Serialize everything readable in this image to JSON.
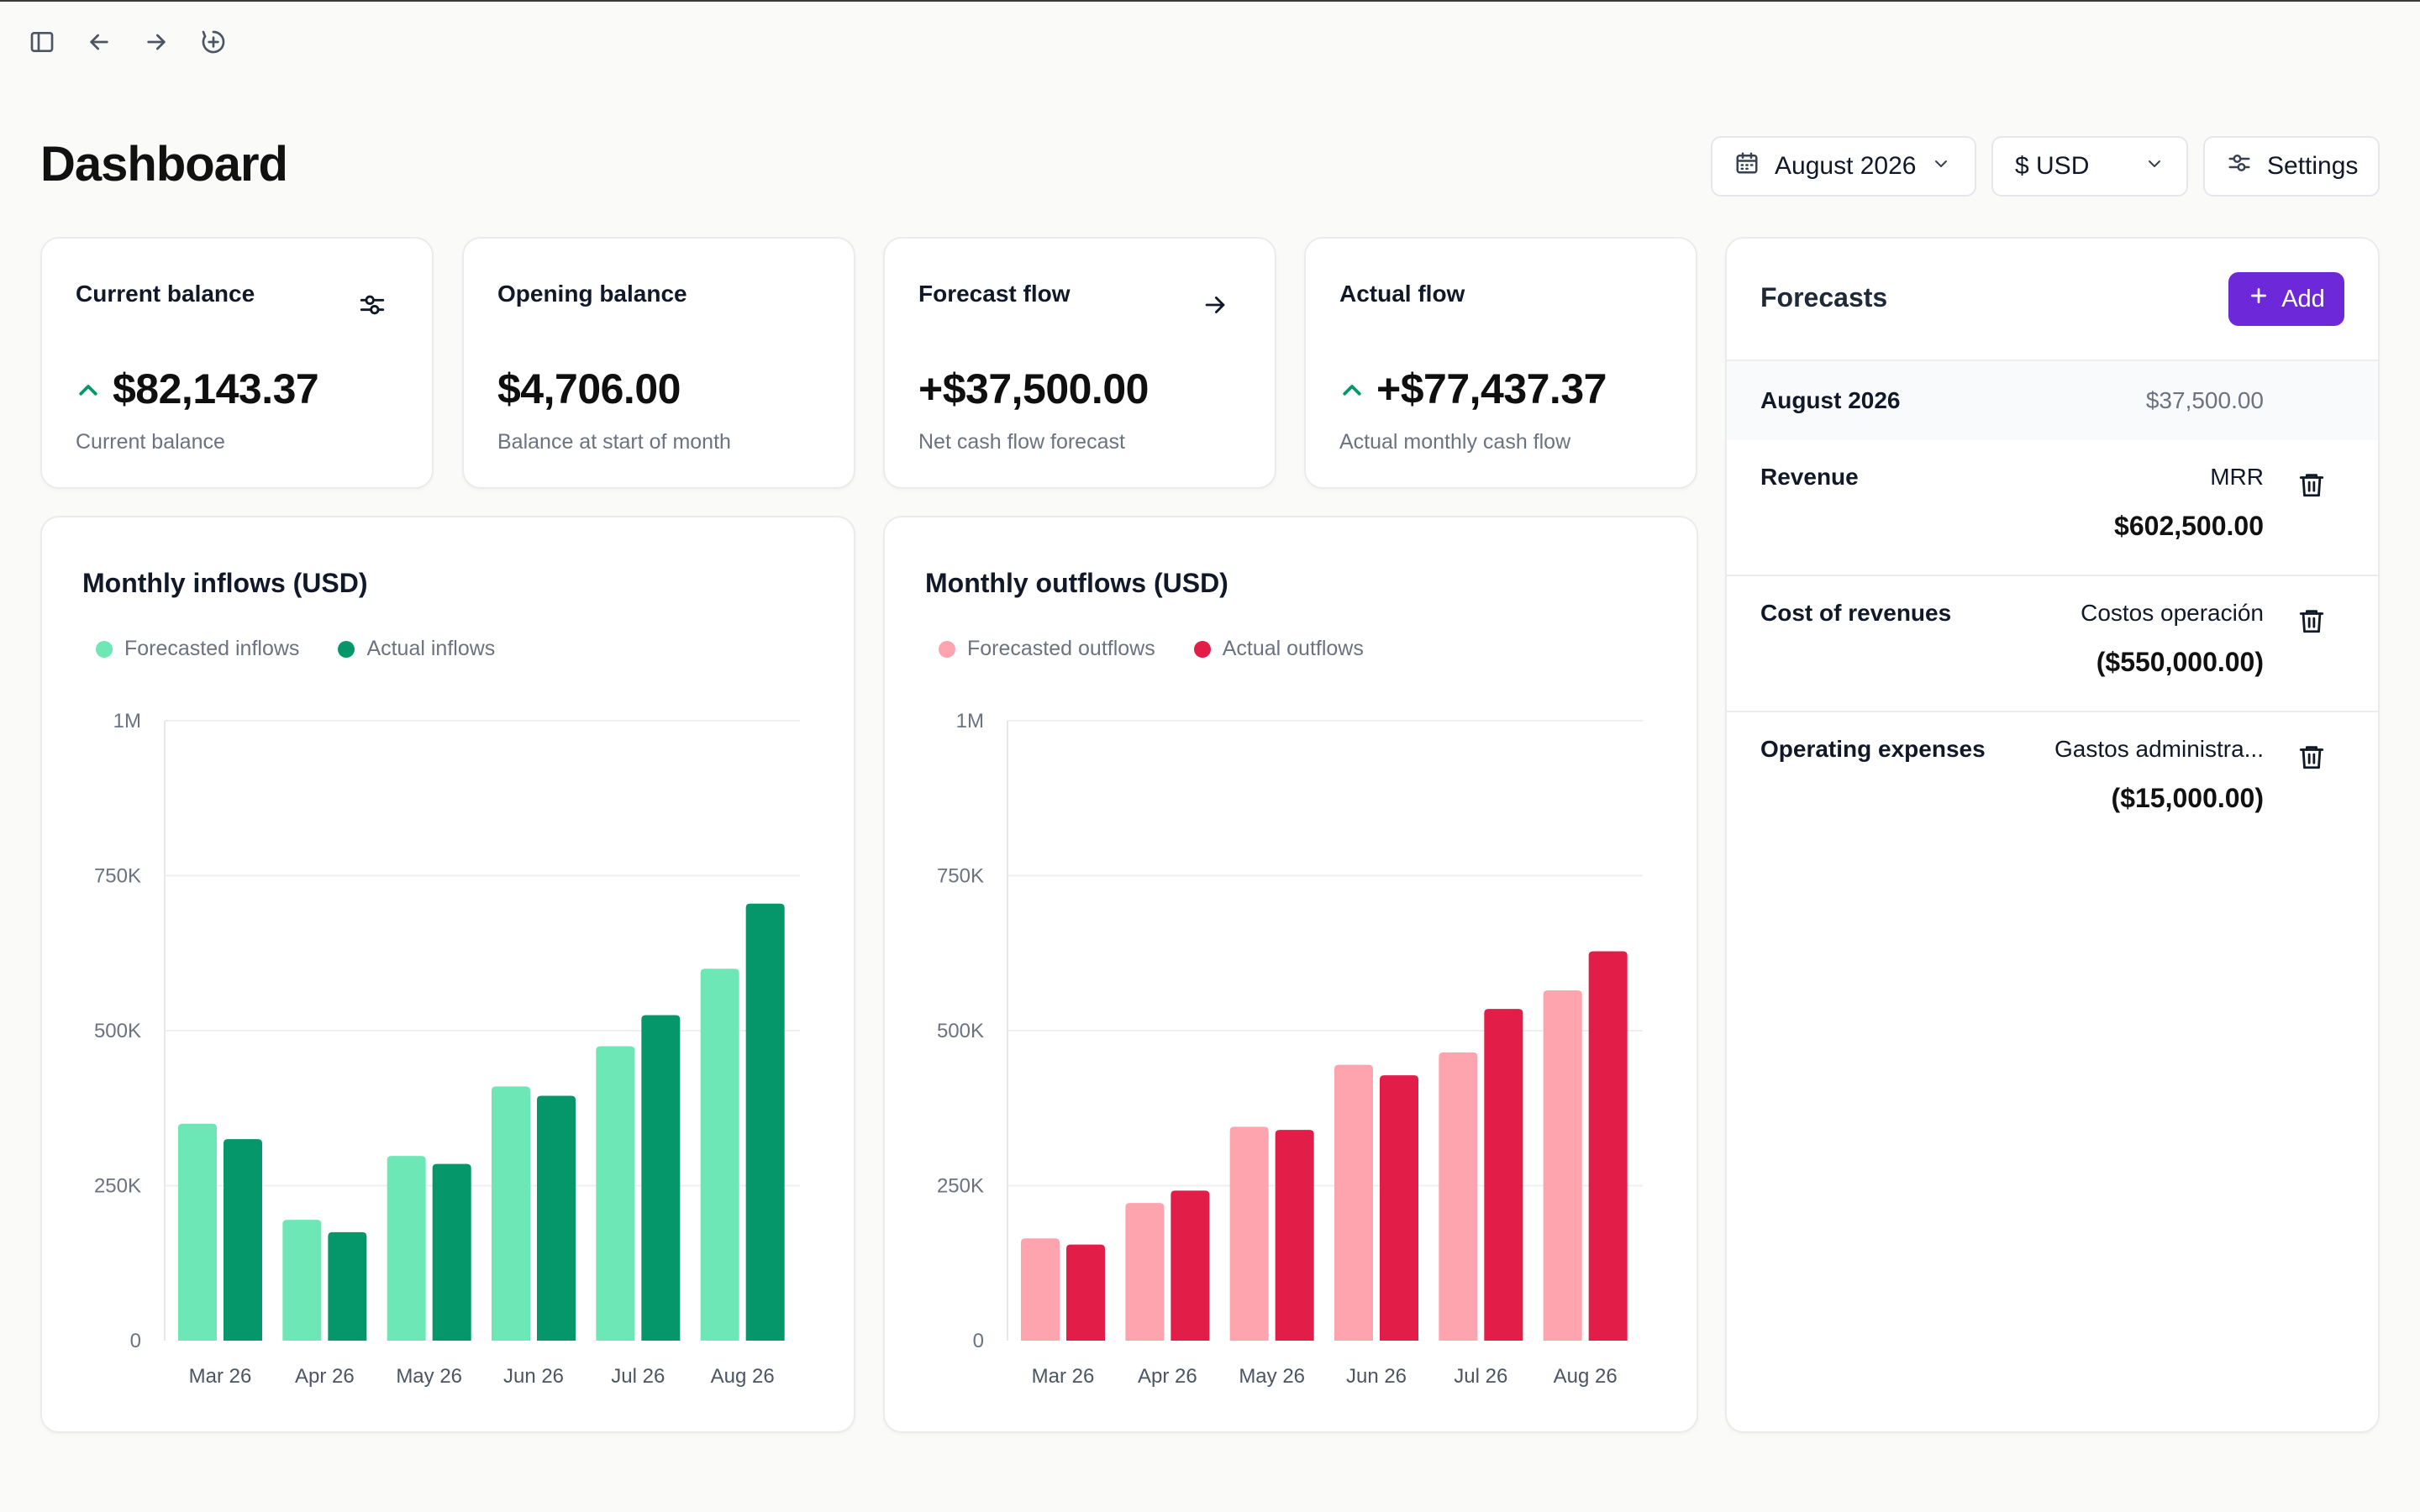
{
  "toolbar": {
    "icons": [
      "sidebar-toggle-icon",
      "back-arrow-icon",
      "forward-arrow-icon",
      "new-tab-plus-icon"
    ]
  },
  "page": {
    "title": "Dashboard"
  },
  "header": {
    "date_label": "August 2026",
    "currency_label": "$ USD",
    "settings_label": "Settings"
  },
  "stats": [
    {
      "label": "Current balance",
      "value": "$82,143.37",
      "sub": "Current balance",
      "trend": "up",
      "corner_icon": "sliders-icon"
    },
    {
      "label": "Opening balance",
      "value": "$4,706.00",
      "sub": "Balance at start of month"
    },
    {
      "label": "Forecast flow",
      "value": "+$37,500.00",
      "sub": "Net cash flow forecast",
      "corner_icon": "arrow-right-icon"
    },
    {
      "label": "Actual flow",
      "value": "+$77,437.37",
      "sub": "Actual monthly cash flow",
      "trend": "up"
    }
  ],
  "chart_data": [
    {
      "type": "bar",
      "title": "Monthly inflows (USD)",
      "categories": [
        "Mar 26",
        "Apr 26",
        "May 26",
        "Jun 26",
        "Jul 26",
        "Aug 26"
      ],
      "ylim": [
        0,
        1000000
      ],
      "yticks": [
        0,
        250000,
        500000,
        750000,
        1000000
      ],
      "yticklabels": [
        "0",
        "250K",
        "500K",
        "750K",
        "1M"
      ],
      "grid": true,
      "legend_position": "top-left",
      "series": [
        {
          "name": "Forecasted inflows",
          "color": "#6ee7b7",
          "values": [
            350000,
            195000,
            298000,
            410000,
            475000,
            600000
          ]
        },
        {
          "name": "Actual inflows",
          "color": "#059669",
          "values": [
            325000,
            175000,
            285000,
            395000,
            525000,
            705000
          ]
        }
      ]
    },
    {
      "type": "bar",
      "title": "Monthly outflows (USD)",
      "categories": [
        "Mar 26",
        "Apr 26",
        "May 26",
        "Jun 26",
        "Jul 26",
        "Aug 26"
      ],
      "ylim": [
        0,
        1000000
      ],
      "yticks": [
        0,
        250000,
        500000,
        750000,
        1000000
      ],
      "yticklabels": [
        "0",
        "250K",
        "500K",
        "750K",
        "1M"
      ],
      "grid": true,
      "legend_position": "top-left",
      "series": [
        {
          "name": "Forecasted outflows",
          "color": "#fda4af",
          "values": [
            165000,
            222000,
            345000,
            445000,
            465000,
            565000
          ]
        },
        {
          "name": "Actual outflows",
          "color": "#e11d48",
          "values": [
            155000,
            242000,
            340000,
            428000,
            535000,
            628000
          ]
        }
      ]
    }
  ],
  "forecasts": {
    "title": "Forecasts",
    "add_label": "Add",
    "period": {
      "name": "August 2026",
      "amount": "$37,500.00"
    },
    "rows": [
      {
        "name": "Revenue",
        "category": "MRR",
        "amount": "$602,500.00"
      },
      {
        "name": "Cost of revenues",
        "category": "Costos operación",
        "amount": "($550,000.00)"
      },
      {
        "name": "Operating expenses",
        "category": "Gastos administra...",
        "amount": "($15,000.00)"
      }
    ]
  },
  "colors": {
    "accent": "#6d28d9",
    "positive": "#059669",
    "inflow_forecast": "#6ee7b7",
    "inflow_actual": "#059669",
    "outflow_forecast": "#fda4af",
    "outflow_actual": "#e11d48"
  }
}
